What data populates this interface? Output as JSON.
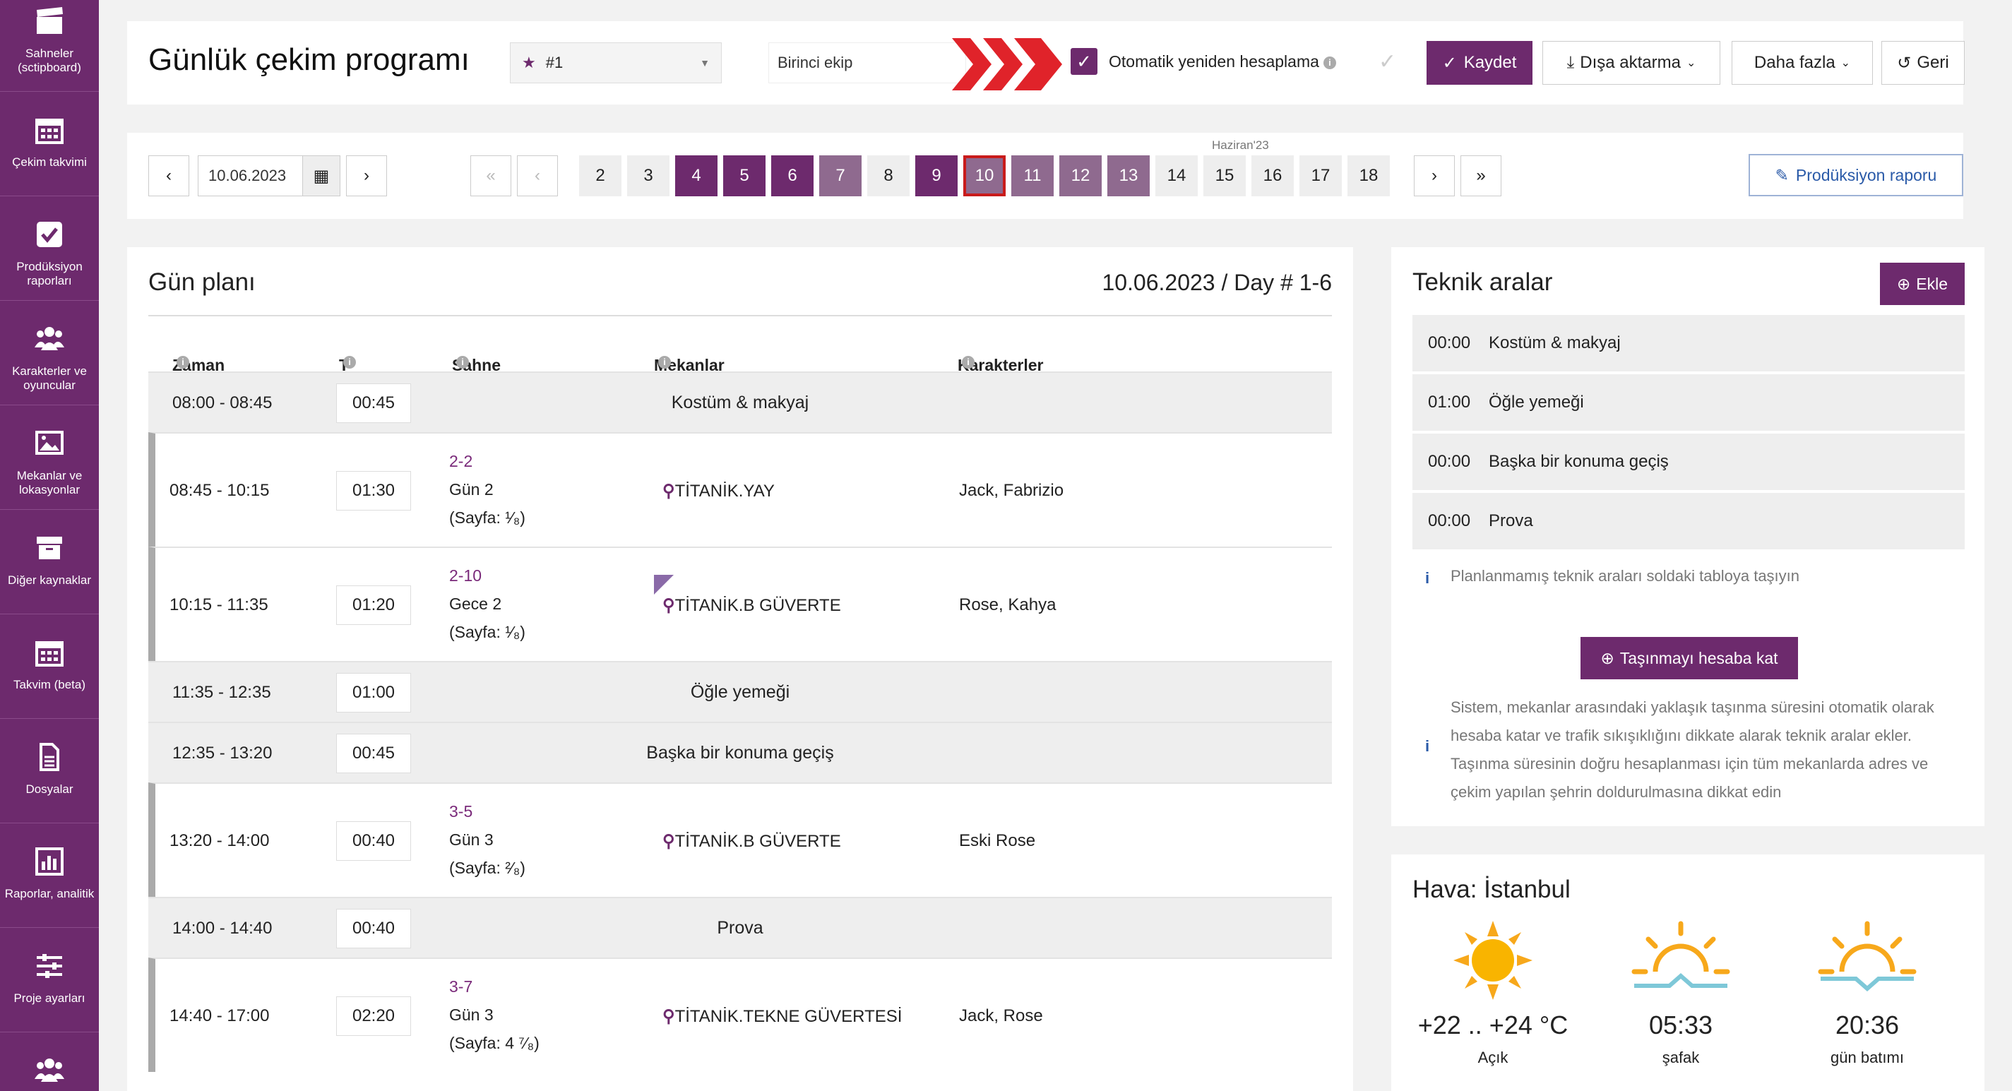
{
  "sidebar": {
    "items": [
      {
        "label": "Sahneler (sctipboard)",
        "icon": "clapperboard-icon"
      },
      {
        "label": "Çekim takvimi",
        "icon": "calendar-icon"
      },
      {
        "label": "Prodüksiyon raporları",
        "icon": "checkbox-icon"
      },
      {
        "label": "Karakterler ve oyuncular",
        "icon": "people-icon"
      },
      {
        "label": "Mekanlar ve lokasyonlar",
        "icon": "image-icon"
      },
      {
        "label": "Diğer kaynaklar",
        "icon": "archive-icon"
      },
      {
        "label": "Takvim (beta)",
        "icon": "calendar-icon"
      },
      {
        "label": "Dosyalar",
        "icon": "file-icon"
      },
      {
        "label": "Raporlar, analitik",
        "icon": "bar-chart-icon"
      },
      {
        "label": "Proje ayarları",
        "icon": "sliders-icon"
      },
      {
        "label": "",
        "icon": "people-icon"
      }
    ]
  },
  "header": {
    "title": "Günlük çekim programı",
    "schedule_select": "#1",
    "unit_input": "Birinci ekip",
    "auto_recalc_label": "Otomatik yeniden hesaplama",
    "save": "Kaydet",
    "export": "Dışa aktarma",
    "more": "Daha fazla",
    "back": "Geri"
  },
  "datebar": {
    "date": "10.06.2023",
    "month": "Haziran'23",
    "production_report": "Prodüksiyon raporu",
    "days": [
      {
        "n": "2",
        "s": ""
      },
      {
        "n": "3",
        "s": ""
      },
      {
        "n": "4",
        "s": "d"
      },
      {
        "n": "5",
        "s": "d"
      },
      {
        "n": "6",
        "s": "d"
      },
      {
        "n": "7",
        "s": "l"
      },
      {
        "n": "8",
        "s": ""
      },
      {
        "n": "9",
        "s": "d"
      },
      {
        "n": "10",
        "s": "l cur"
      },
      {
        "n": "11",
        "s": "l"
      },
      {
        "n": "12",
        "s": "l"
      },
      {
        "n": "13",
        "s": "l"
      },
      {
        "n": "14",
        "s": ""
      },
      {
        "n": "15",
        "s": ""
      },
      {
        "n": "16",
        "s": ""
      },
      {
        "n": "17",
        "s": ""
      },
      {
        "n": "18",
        "s": ""
      }
    ]
  },
  "dayplan": {
    "title": "Gün planı",
    "date_label": "10.06.2023 / Day # 1-6",
    "columns": {
      "time": "Zaman",
      "t": "T",
      "scene": "Sahne No",
      "locations": "Mekanlar",
      "characters": "Karakterler"
    },
    "rows": [
      {
        "type": "break",
        "time": "08:00 - 08:45",
        "dur": "00:45",
        "label": "Kostüm & makyaj"
      },
      {
        "type": "scene",
        "time": "08:45 - 10:15",
        "dur": "01:30",
        "no": "2-2",
        "day": "Gün 2",
        "pages": "(Sayfa: ¹⁄₈)",
        "loc": "TİTANİK.YAY",
        "chars": "Jack, Fabrizio"
      },
      {
        "type": "scene",
        "time": "10:15 - 11:35",
        "dur": "01:20",
        "no": "2-10",
        "day": "Gece 2",
        "pages": "(Sayfa: ¹⁄₈)",
        "loc": "TİTANİK.B GÜVERTE",
        "chars": "Rose, Kahya"
      },
      {
        "type": "break",
        "time": "11:35 - 12:35",
        "dur": "01:00",
        "label": "Öğle yemeği"
      },
      {
        "type": "break",
        "time": "12:35 - 13:20",
        "dur": "00:45",
        "label": "Başka bir konuma geçiş"
      },
      {
        "type": "scene",
        "time": "13:20 - 14:00",
        "dur": "00:40",
        "no": "3-5",
        "day": "Gün 3",
        "pages": "(Sayfa: ²⁄₈)",
        "loc": "TİTANİK.B GÜVERTE",
        "chars": "Eski Rose"
      },
      {
        "type": "break",
        "time": "14:00 - 14:40",
        "dur": "00:40",
        "label": "Prova"
      },
      {
        "type": "scene",
        "time": "14:40 - 17:00",
        "dur": "02:20",
        "no": "3-7",
        "day": "Gün 3",
        "pages": "(Sayfa: 4 ⁷⁄₈)",
        "loc": "TİTANİK.TEKNE GÜVERTESİ",
        "chars": "Jack, Rose"
      }
    ]
  },
  "breaks": {
    "title": "Teknik aralar",
    "add": "Ekle",
    "items": [
      {
        "t": "00:00",
        "label": "Kostüm & makyaj"
      },
      {
        "t": "01:00",
        "label": "Öğle yemeği"
      },
      {
        "t": "00:00",
        "label": "Başka bir konuma geçiş"
      },
      {
        "t": "00:00",
        "label": "Prova"
      }
    ],
    "hint": "Planlanmamış teknik araları soldaki tabloya taşıyın",
    "transfer_btn": "Taşınmayı hesaba kat",
    "description": "Sistem, mekanlar arasındaki yaklaşık taşınma süresini otomatik olarak hesaba katar ve trafik sıkışıklığını dikkate alarak teknik aralar ekler. Taşınma süresinin doğru hesaplanması için tüm mekanlarda adres ve çekim yapılan şehrin doldurulmasına dikkat edin"
  },
  "weather": {
    "title": "Hava: İstanbul",
    "temp": "+22 .. +24 °C",
    "cond": "Açık",
    "dawn_time": "05:33",
    "dawn_label": "şafak",
    "sunset_time": "20:36",
    "sunset_label": "gün batımı"
  },
  "colors": {
    "accent": "#6d2a6d",
    "link": "#2a5aa8",
    "alert": "#e0232a"
  }
}
